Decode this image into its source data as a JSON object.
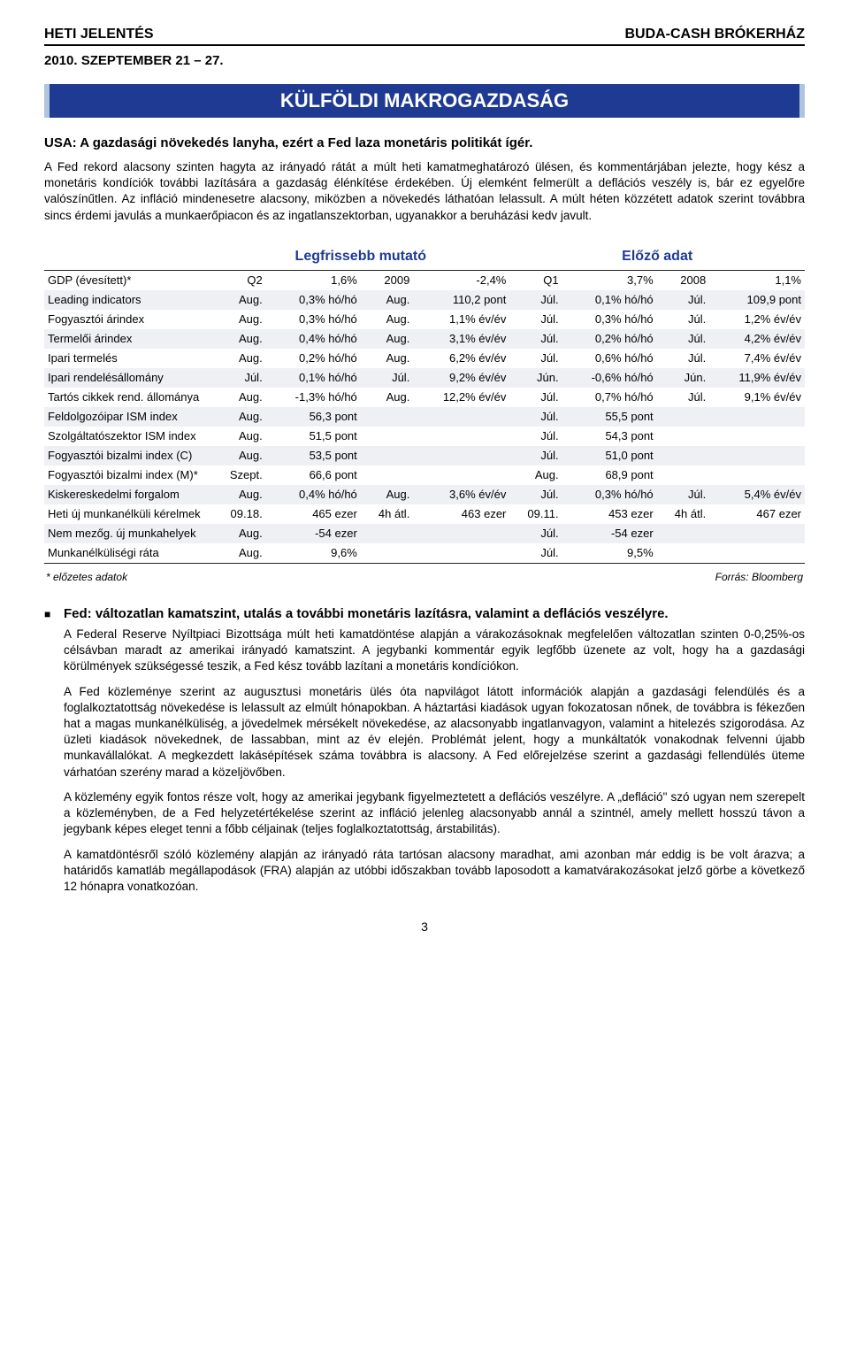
{
  "header": {
    "left": "HETI JELENTÉS",
    "right": "BUDA-CASH BRÓKERHÁZ",
    "date": "2010. SZEPTEMBER 21 – 27."
  },
  "banner": "KÜLFÖLDI MAKROGAZDASÁG",
  "subtitle": "USA: A gazdasági növekedés lanyha, ezért a Fed laza monetáris politikát ígér.",
  "intro": "A Fed rekord alacsony szinten hagyta az irányadó rátát a múlt heti kamatmeghatározó ülésen, és kommentárjában jelezte, hogy kész a monetáris kondíciók további lazítására a gazdaság élénkítése érdekében. Új elemként felmerült a deflációs veszély is, bár ez egyelőre valószínűtlen. Az infláció mindenesetre alacsony, miközben a növekedés láthatóan lelassult. A múlt héten közzétett adatok szerint továbbra sincs érdemi javulás a munkaerőpiacon és az ingatlanszektorban, ugyanakkor a beruházási kedv javult.",
  "table": {
    "head_left": "",
    "head_latest": "Legfrissebb mutató",
    "head_prev": "Előző adat",
    "footnote_left": "* előzetes adatok",
    "footnote_right": "Forrás: Bloomberg",
    "rows": [
      {
        "l": "GDP (évesített)*",
        "a": "Q2",
        "b": "1,6%",
        "c": "2009",
        "d": "-2,4%",
        "e": "Q1",
        "f": "3,7%",
        "g": "2008",
        "h": "1,1%"
      },
      {
        "l": "Leading indicators",
        "a": "Aug.",
        "b": "0,3% hó/hó",
        "c": "Aug.",
        "d": "110,2 pont",
        "e": "Júl.",
        "f": "0,1% hó/hó",
        "g": "Júl.",
        "h": "109,9 pont"
      },
      {
        "l": "Fogyasztói árindex",
        "a": "Aug.",
        "b": "0,3% hó/hó",
        "c": "Aug.",
        "d": "1,1% év/év",
        "e": "Júl.",
        "f": "0,3% hó/hó",
        "g": "Júl.",
        "h": "1,2% év/év"
      },
      {
        "l": "Termelői árindex",
        "a": "Aug.",
        "b": "0,4% hó/hó",
        "c": "Aug.",
        "d": "3,1% év/év",
        "e": "Júl.",
        "f": "0,2% hó/hó",
        "g": "Júl.",
        "h": "4,2% év/év"
      },
      {
        "l": "Ipari termelés",
        "a": "Aug.",
        "b": "0,2% hó/hó",
        "c": "Aug.",
        "d": "6,2% év/év",
        "e": "Júl.",
        "f": "0,6% hó/hó",
        "g": "Júl.",
        "h": "7,4% év/év"
      },
      {
        "l": "Ipari rendelésállomány",
        "a": "Júl.",
        "b": "0,1% hó/hó",
        "c": "Júl.",
        "d": "9,2% év/év",
        "e": "Jún.",
        "f": "-0,6% hó/hó",
        "g": "Jún.",
        "h": "11,9% év/év"
      },
      {
        "l": "Tartós cikkek rend. állománya",
        "a": "Aug.",
        "b": "-1,3% hó/hó",
        "c": "Aug.",
        "d": "12,2% év/év",
        "e": "Júl.",
        "f": "0,7% hó/hó",
        "g": "Júl.",
        "h": "9,1% év/év"
      },
      {
        "l": "Feldolgozóipar ISM index",
        "a": "Aug.",
        "b": "56,3 pont",
        "c": "",
        "d": "",
        "e": "Júl.",
        "f": "55,5 pont",
        "g": "",
        "h": ""
      },
      {
        "l": "Szolgáltatószektor ISM index",
        "a": "Aug.",
        "b": "51,5 pont",
        "c": "",
        "d": "",
        "e": "Júl.",
        "f": "54,3 pont",
        "g": "",
        "h": ""
      },
      {
        "l": "Fogyasztói bizalmi index (C)",
        "a": "Aug.",
        "b": "53,5 pont",
        "c": "",
        "d": "",
        "e": "Júl.",
        "f": "51,0 pont",
        "g": "",
        "h": ""
      },
      {
        "l": "Fogyasztói bizalmi index (M)*",
        "a": "Szept.",
        "b": "66,6 pont",
        "c": "",
        "d": "",
        "e": "Aug.",
        "f": "68,9 pont",
        "g": "",
        "h": ""
      },
      {
        "l": "Kiskereskedelmi forgalom",
        "a": "Aug.",
        "b": "0,4% hó/hó",
        "c": "Aug.",
        "d": "3,6% év/év",
        "e": "Júl.",
        "f": "0,3% hó/hó",
        "g": "Júl.",
        "h": "5,4% év/év"
      },
      {
        "l": "Heti új munkanélküli kérelmek",
        "a": "09.18.",
        "b": "465 ezer",
        "c": "4h átl.",
        "d": "463 ezer",
        "e": "09.11.",
        "f": "453 ezer",
        "g": "4h átl.",
        "h": "467 ezer"
      },
      {
        "l": "Nem mezőg. új munkahelyek",
        "a": "Aug.",
        "b": "-54 ezer",
        "c": "",
        "d": "",
        "e": "Júl.",
        "f": "-54 ezer",
        "g": "",
        "h": ""
      },
      {
        "l": "Munkanélküliségi ráta",
        "a": "Aug.",
        "b": "9,6%",
        "c": "",
        "d": "",
        "e": "Júl.",
        "f": "9,5%",
        "g": "",
        "h": ""
      }
    ]
  },
  "section": {
    "title": "Fed: változatlan kamatszint, utalás a további monetáris lazításra, valamint a deflációs veszélyre.",
    "p1": "A Federal Reserve Nyíltpiaci Bizottsága múlt heti kamatdöntése alapján a várakozásoknak megfelelően változatlan szinten 0-0,25%-os célsávban maradt az amerikai irányadó kamatszint. A jegybanki kommentár egyik legfőbb üzenete az volt, hogy ha a gazdasági körülmények szükségessé teszik, a Fed kész tovább lazítani a monetáris kondíciókon.",
    "p2": "A Fed közleménye szerint az augusztusi monetáris ülés óta napvilágot látott információk alapján a gazdasági felendülés és a foglalkoztatottság növekedése is lelassult az elmúlt hónapokban. A háztartási kiadások ugyan fokozatosan nőnek, de továbbra is fékezően hat a magas munkanélküliség, a jövedelmek mérsékelt növekedése, az alacsonyabb ingatlanvagyon, valamint a hitelezés szigorodása. Az üzleti kiadások növekednek, de lassabban, mint az év elején. Problémát jelent, hogy a munkáltatók vonakodnak felvenni újabb munkavállalókat. A megkezdett lakásépítések száma továbbra is alacsony. A Fed előrejelzése szerint a gazdasági fellendülés üteme várhatóan szerény marad a közeljövőben.",
    "p3": "A közlemény egyik fontos része volt, hogy az amerikai jegybank figyelmeztetett a deflációs veszélyre. A „defláció\" szó ugyan nem szerepelt a közleményben, de a Fed helyzetértékelése szerint az infláció jelenleg alacsonyabb annál a szintnél, amely mellett hosszú távon a jegybank képes eleget tenni a főbb céljainak (teljes foglalkoztatottság, árstabilitás).",
    "p4": "A kamatdöntésről szóló közlemény alapján az irányadó ráta tartósan alacsony maradhat, ami azonban már eddig is be volt árazva; a határidős kamatláb megállapodások (FRA) alapján az utóbbi időszakban tovább laposodott a kamatvárakozásokat jelző görbe a következő 12 hónapra vonatkozóan."
  },
  "page_number": "3"
}
